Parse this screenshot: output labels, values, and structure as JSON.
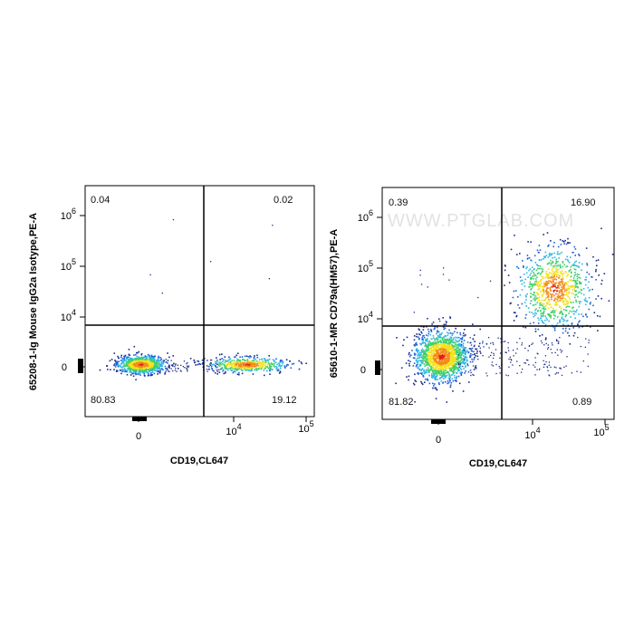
{
  "watermark": "WWW.PTGLAB.COM",
  "colors": {
    "density": [
      "#1a2a8c",
      "#1f5fd6",
      "#2fb7e6",
      "#3ecf6a",
      "#f3e21d",
      "#f38a1c",
      "#e01f1f"
    ],
    "gate_line": "#000000"
  },
  "chart_data": [
    {
      "type": "scatter",
      "subtype": "flow-cytometry-density-dot-plot",
      "xlabel": "CD19,CL647",
      "ylabel": "65208-1-Ig Mouse IgG2a Isotype,PE-A",
      "x_scale": "biexponential",
      "y_scale": "biexponential",
      "x_ticks": [
        "0",
        "10⁴",
        "10⁵"
      ],
      "y_ticks": [
        "0",
        "10⁴",
        "10⁵",
        "10⁶"
      ],
      "gate": {
        "x": 5000,
        "y": 6000
      },
      "quadrants": {
        "upper_left": "0.04",
        "upper_right": "0.02",
        "lower_left": "80.83",
        "lower_right": "19.12"
      },
      "populations": [
        {
          "quadrant": "lower_left",
          "x_center": 0,
          "y_center": 0,
          "percent": 80.83
        },
        {
          "quadrant": "lower_right",
          "x_center": 25000,
          "y_center": 0,
          "percent": 19.12
        }
      ]
    },
    {
      "type": "scatter",
      "subtype": "flow-cytometry-density-dot-plot",
      "xlabel": "CD19,CL647",
      "ylabel": "65610-1-MR CD79a(HM57),PE-A",
      "x_scale": "biexponential",
      "y_scale": "biexponential",
      "x_ticks": [
        "0",
        "10⁴",
        "10⁵"
      ],
      "y_ticks": [
        "0",
        "10⁴",
        "10⁵",
        "10⁶"
      ],
      "gate": {
        "x": 5000,
        "y": 6000
      },
      "quadrants": {
        "upper_left": "0.39",
        "upper_right": "16.90",
        "lower_left": "81.82",
        "lower_right": "0.89"
      },
      "populations": [
        {
          "quadrant": "lower_left",
          "x_center": 0,
          "y_center": 0,
          "percent": 81.82
        },
        {
          "quadrant": "upper_right",
          "x_center": 25000,
          "y_center": 50000,
          "percent": 16.9
        }
      ]
    }
  ]
}
